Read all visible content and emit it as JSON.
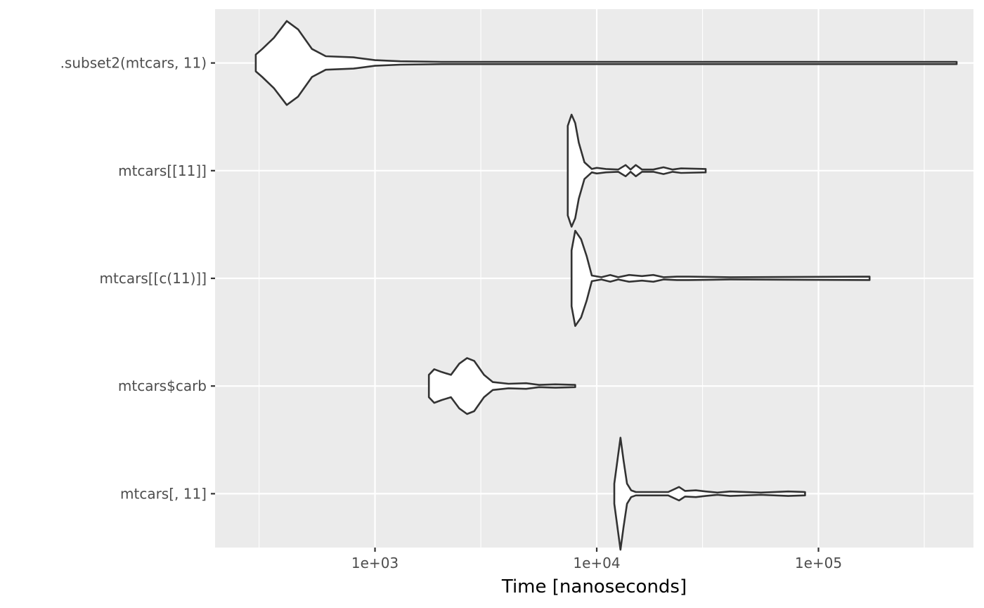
{
  "chart_data": {
    "type": "violin",
    "orientation": "horizontal",
    "title": "",
    "xlabel": "Time [nanoseconds]",
    "ylabel": "",
    "x_scale": "log10",
    "xlim": [
      190,
      500000
    ],
    "x_ticks": [
      {
        "value": 1000,
        "label": "1e+03"
      },
      {
        "value": 10000,
        "label": "1e+04"
      },
      {
        "value": 100000,
        "label": "1e+05"
      }
    ],
    "x_minor_grid": [
      300,
      3000,
      30000,
      300000
    ],
    "grid": true,
    "legend": "none",
    "colors": {
      "panel": "#ebebeb",
      "grid": "#ffffff",
      "outline": "#333333",
      "fill": "#ffffff"
    },
    "series": [
      {
        "name": ".subset2(mtcars, 11)",
        "min": 290,
        "max": 420000,
        "density": [
          [
            290,
            0.15
          ],
          [
            310,
            0.25
          ],
          [
            350,
            0.45
          ],
          [
            400,
            0.75
          ],
          [
            450,
            0.6
          ],
          [
            520,
            0.25
          ],
          [
            600,
            0.12
          ],
          [
            800,
            0.1
          ],
          [
            1000,
            0.05
          ],
          [
            1300,
            0.03
          ],
          [
            2000,
            0.02
          ],
          [
            10000,
            0.02
          ],
          [
            100000,
            0.02
          ],
          [
            420000,
            0.02
          ]
        ]
      },
      {
        "name": "mtcars[[11]]",
        "min": 7400,
        "max": 31000,
        "density": [
          [
            7400,
            0.8
          ],
          [
            7700,
            1.0
          ],
          [
            8000,
            0.85
          ],
          [
            8300,
            0.5
          ],
          [
            8800,
            0.15
          ],
          [
            9500,
            0.03
          ],
          [
            10000,
            0.05
          ],
          [
            11000,
            0.03
          ],
          [
            12500,
            0.02
          ],
          [
            13500,
            0.1
          ],
          [
            14200,
            0.02
          ],
          [
            15000,
            0.1
          ],
          [
            16000,
            0.02
          ],
          [
            18000,
            0.02
          ],
          [
            20000,
            0.06
          ],
          [
            22000,
            0.02
          ],
          [
            24000,
            0.04
          ],
          [
            31000,
            0.03
          ]
        ]
      },
      {
        "name": "mtcars[[c(11)]]",
        "min": 7700,
        "max": 170000,
        "density": [
          [
            7700,
            0.5
          ],
          [
            8000,
            0.85
          ],
          [
            8500,
            0.7
          ],
          [
            9000,
            0.4
          ],
          [
            9500,
            0.05
          ],
          [
            10500,
            0.02
          ],
          [
            11500,
            0.06
          ],
          [
            12500,
            0.02
          ],
          [
            14000,
            0.06
          ],
          [
            16000,
            0.04
          ],
          [
            18000,
            0.06
          ],
          [
            20000,
            0.02
          ],
          [
            23000,
            0.03
          ],
          [
            26000,
            0.03
          ],
          [
            40000,
            0.02
          ],
          [
            170000,
            0.03
          ]
        ]
      },
      {
        "name": "mtcars$carb",
        "min": 1750,
        "max": 8000,
        "density": [
          [
            1750,
            0.2
          ],
          [
            1850,
            0.3
          ],
          [
            2000,
            0.25
          ],
          [
            2200,
            0.2
          ],
          [
            2400,
            0.4
          ],
          [
            2600,
            0.5
          ],
          [
            2800,
            0.45
          ],
          [
            3100,
            0.2
          ],
          [
            3400,
            0.07
          ],
          [
            4000,
            0.04
          ],
          [
            4800,
            0.05
          ],
          [
            5500,
            0.02
          ],
          [
            6500,
            0.03
          ],
          [
            8000,
            0.02
          ]
        ]
      },
      {
        "name": "mtcars[, 11]",
        "min": 12000,
        "max": 87000,
        "density": [
          [
            12000,
            0.18
          ],
          [
            12400,
            0.6
          ],
          [
            12800,
            1.0
          ],
          [
            13200,
            0.6
          ],
          [
            13700,
            0.18
          ],
          [
            14300,
            0.06
          ],
          [
            15000,
            0.03
          ],
          [
            17000,
            0.03
          ],
          [
            19000,
            0.03
          ],
          [
            21000,
            0.03
          ],
          [
            23500,
            0.12
          ],
          [
            25000,
            0.05
          ],
          [
            28000,
            0.06
          ],
          [
            31000,
            0.04
          ],
          [
            35000,
            0.02
          ],
          [
            40000,
            0.04
          ],
          [
            55000,
            0.02
          ],
          [
            73000,
            0.04
          ],
          [
            87000,
            0.03
          ]
        ]
      }
    ]
  }
}
